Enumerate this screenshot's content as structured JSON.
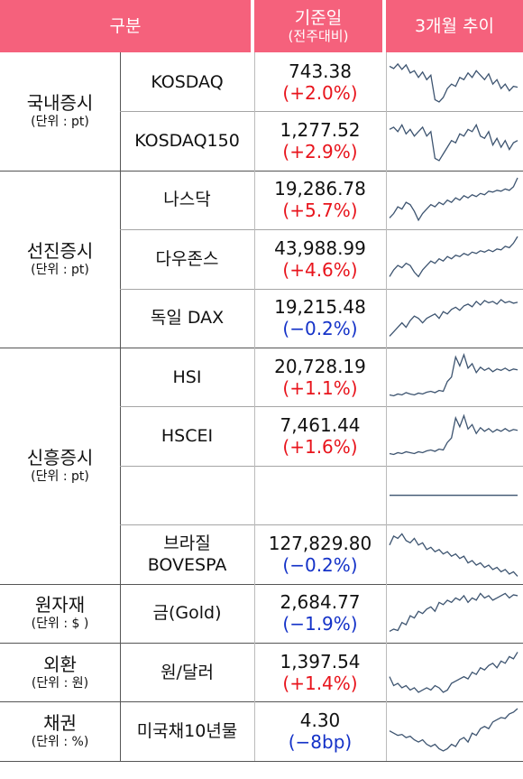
{
  "header": {
    "col_category": "구분",
    "col_value_line1": "기준일",
    "col_value_line2": "(전주대비)",
    "col_trend": "3개월 추이"
  },
  "colors": {
    "header_bg": "#f5617c",
    "up": "#e8141c",
    "down": "#1432c8",
    "line": "#3d5470"
  },
  "groups": [
    {
      "name": "국내증시",
      "unit": "(단위 : pt)",
      "rows": [
        {
          "name": "KOSDAQ",
          "value": "743.38",
          "change": "(+2.0%)",
          "dir": "up"
        },
        {
          "name": "KOSDAQ150",
          "value": "1,277.52",
          "change": "(+2.9%)",
          "dir": "up"
        }
      ]
    },
    {
      "name": "선진증시",
      "unit": "(단위 : pt)",
      "rows": [
        {
          "name": "나스닥",
          "value": "19,286.78",
          "change": "(+5.7%)",
          "dir": "up"
        },
        {
          "name": "다우존스",
          "value": "43,988.99",
          "change": "(+4.6%)",
          "dir": "up"
        },
        {
          "name": "독일 DAX",
          "value": "19,215.48",
          "change": "(−0.2%)",
          "dir": "down"
        }
      ]
    },
    {
      "name": "신흥증시",
      "unit": "(단위 : pt)",
      "rows": [
        {
          "name": "HSI",
          "value": "20,728.19",
          "change": "(+1.1%)",
          "dir": "up"
        },
        {
          "name": "HSCEI",
          "value": "7,461.44",
          "change": "(+1.6%)",
          "dir": "up"
        },
        {
          "name": "",
          "value": "",
          "change": "",
          "dir": "flat"
        },
        {
          "name": "브라질\nBOVESPA",
          "value": "127,829.80",
          "change": "(−0.2%)",
          "dir": "down"
        }
      ]
    },
    {
      "name": "원자재",
      "unit": "(단위 : $ )",
      "rows": [
        {
          "name": "금(Gold)",
          "value": "2,684.77",
          "change": "(−1.9%)",
          "dir": "down"
        }
      ]
    },
    {
      "name": "외환",
      "unit": "(단위 : 원)",
      "rows": [
        {
          "name": "원/달러",
          "value": "1,397.54",
          "change": "(+1.4%)",
          "dir": "up"
        }
      ]
    },
    {
      "name": "채권",
      "unit": "(단위 : %)",
      "rows": [
        {
          "name": "미국채10년물",
          "value": "4.30",
          "change": "(−8bp)",
          "dir": "down"
        }
      ]
    }
  ],
  "trends": [
    [
      0.85,
      0.8,
      0.9,
      0.78,
      0.88,
      0.7,
      0.75,
      0.6,
      0.72,
      0.55,
      0.65,
      0.1,
      0.05,
      0.15,
      0.35,
      0.45,
      0.4,
      0.6,
      0.55,
      0.7,
      0.6,
      0.75,
      0.65,
      0.55,
      0.68,
      0.45,
      0.55,
      0.35,
      0.45,
      0.3,
      0.4,
      0.38
    ],
    [
      0.75,
      0.8,
      0.7,
      0.85,
      0.65,
      0.75,
      0.6,
      0.7,
      0.8,
      0.6,
      0.7,
      0.1,
      0.05,
      0.2,
      0.35,
      0.5,
      0.45,
      0.65,
      0.6,
      0.75,
      0.7,
      0.85,
      0.6,
      0.55,
      0.7,
      0.4,
      0.55,
      0.35,
      0.5,
      0.3,
      0.45,
      0.5
    ],
    [
      0.1,
      0.2,
      0.35,
      0.3,
      0.45,
      0.4,
      0.25,
      0.05,
      0.2,
      0.3,
      0.4,
      0.35,
      0.45,
      0.4,
      0.5,
      0.45,
      0.55,
      0.5,
      0.6,
      0.55,
      0.62,
      0.58,
      0.65,
      0.62,
      0.7,
      0.68,
      0.72,
      0.7,
      0.75,
      0.72,
      0.8,
      1.0
    ],
    [
      0.1,
      0.25,
      0.35,
      0.3,
      0.4,
      0.35,
      0.2,
      0.1,
      0.25,
      0.35,
      0.45,
      0.4,
      0.5,
      0.45,
      0.55,
      0.5,
      0.58,
      0.55,
      0.62,
      0.58,
      0.65,
      0.62,
      0.68,
      0.65,
      0.7,
      0.66,
      0.72,
      0.7,
      0.78,
      0.75,
      0.85,
      1.0
    ],
    [
      0.1,
      0.2,
      0.3,
      0.4,
      0.3,
      0.45,
      0.55,
      0.5,
      0.4,
      0.5,
      0.55,
      0.6,
      0.5,
      0.65,
      0.6,
      0.7,
      0.75,
      0.68,
      0.78,
      0.82,
      0.76,
      0.88,
      0.8,
      0.9,
      0.85,
      0.88,
      0.82,
      0.92,
      0.85,
      0.88,
      0.84,
      0.86
    ],
    [
      0.1,
      0.08,
      0.12,
      0.1,
      0.15,
      0.12,
      0.1,
      0.14,
      0.12,
      0.16,
      0.18,
      0.15,
      0.2,
      0.18,
      0.4,
      0.5,
      0.95,
      0.75,
      1.0,
      0.7,
      0.8,
      0.6,
      0.72,
      0.65,
      0.7,
      0.62,
      0.68,
      0.65,
      0.7,
      0.64,
      0.68,
      0.66
    ],
    [
      0.1,
      0.08,
      0.12,
      0.1,
      0.14,
      0.12,
      0.1,
      0.14,
      0.12,
      0.16,
      0.18,
      0.15,
      0.2,
      0.18,
      0.35,
      0.45,
      0.9,
      0.7,
      0.95,
      0.65,
      0.75,
      0.55,
      0.68,
      0.6,
      0.66,
      0.58,
      0.64,
      0.6,
      0.66,
      0.6,
      0.64,
      0.62
    ],
    [
      0.5,
      0.5
    ],
    [
      0.7,
      0.9,
      0.85,
      0.95,
      0.8,
      0.75,
      0.85,
      0.7,
      0.75,
      0.6,
      0.65,
      0.55,
      0.6,
      0.5,
      0.55,
      0.45,
      0.5,
      0.4,
      0.45,
      0.3,
      0.35,
      0.25,
      0.3,
      0.2,
      0.25,
      0.15,
      0.2,
      0.1,
      0.15,
      0.05,
      0.1,
      0.0
    ],
    [
      0.1,
      0.15,
      0.12,
      0.3,
      0.25,
      0.45,
      0.4,
      0.55,
      0.5,
      0.6,
      0.65,
      0.55,
      0.75,
      0.7,
      0.8,
      0.75,
      0.85,
      0.8,
      0.9,
      0.75,
      0.85,
      0.8,
      0.95,
      0.85,
      0.9,
      0.8,
      0.85,
      0.9,
      0.95,
      0.85,
      0.92,
      0.9
    ],
    [
      0.4,
      0.2,
      0.25,
      0.15,
      0.2,
      0.1,
      0.15,
      0.05,
      0.1,
      0.15,
      0.1,
      0.2,
      0.15,
      0.05,
      0.1,
      0.25,
      0.3,
      0.35,
      0.4,
      0.35,
      0.5,
      0.45,
      0.6,
      0.55,
      0.65,
      0.7,
      0.6,
      0.75,
      0.7,
      0.85,
      0.8,
      0.95
    ],
    [
      0.5,
      0.45,
      0.4,
      0.42,
      0.35,
      0.38,
      0.3,
      0.25,
      0.3,
      0.2,
      0.15,
      0.2,
      0.1,
      0.05,
      0.1,
      0.2,
      0.15,
      0.3,
      0.35,
      0.25,
      0.45,
      0.4,
      0.55,
      0.6,
      0.55,
      0.7,
      0.75,
      0.8,
      0.78,
      0.88,
      0.92,
      1.0
    ]
  ]
}
